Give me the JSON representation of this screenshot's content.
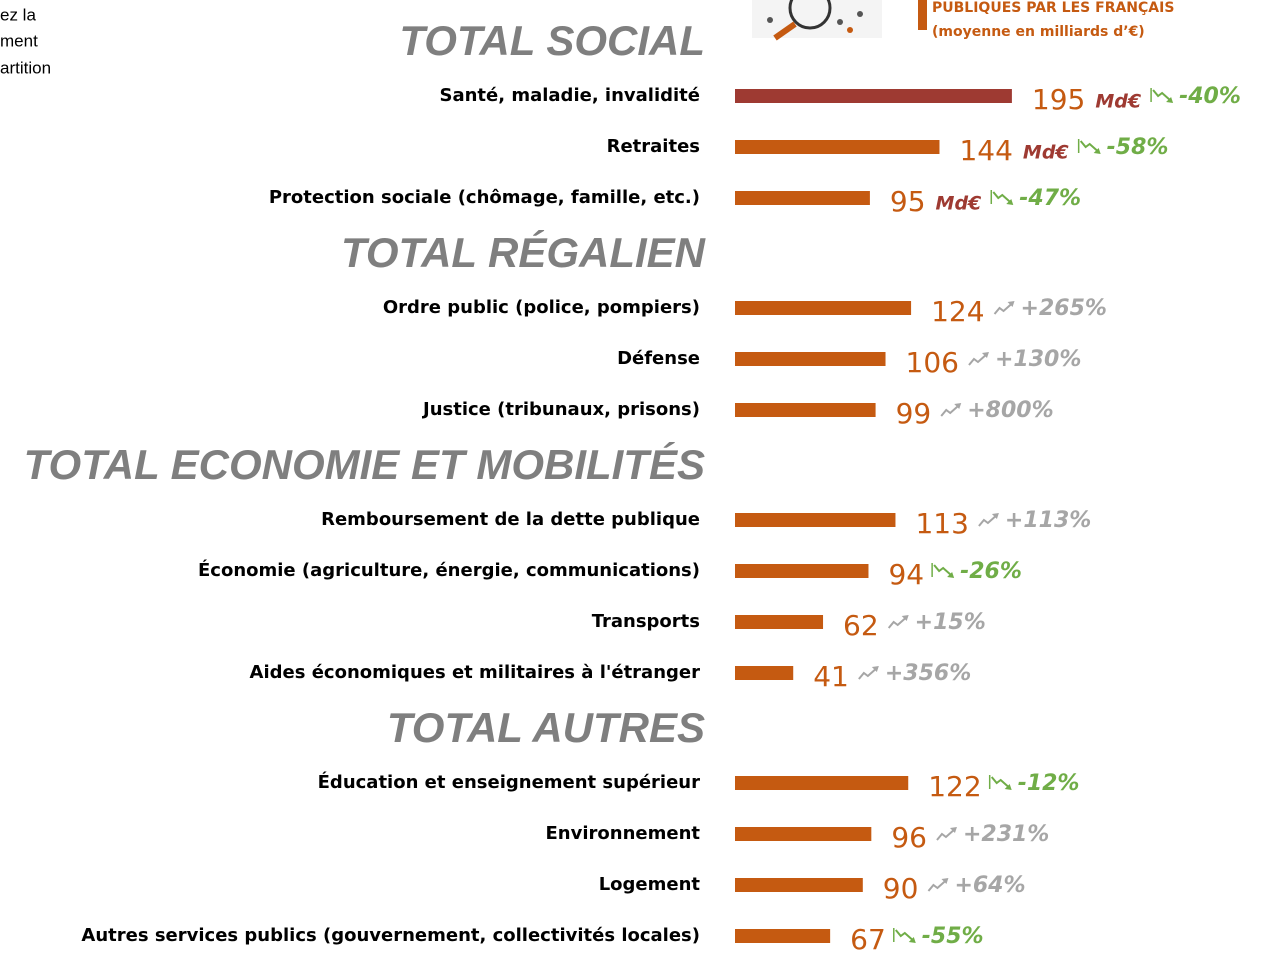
{
  "corner_text": [
    "ez la",
    "ment",
    "artition"
  ],
  "legend": [
    "PUBLIQUES PAR LES FRANÇAIS",
    "(moyenne en milliards d’€)"
  ],
  "chart_data": {
    "type": "bar",
    "color": "#c55a11",
    "highlight_color": "#9e3a32",
    "groups": [
      {
        "title": "TOTAL SOCIAL",
        "unit": "Md€",
        "categories": [
          "Santé, maladie, invalidité",
          "Retraites",
          "Protection sociale (chômage, famille, etc.)"
        ],
        "values": [
          195,
          144,
          95
        ],
        "changes": [
          "-40%",
          "-58%",
          "-47%"
        ]
      },
      {
        "title": "TOTAL RÉGALIEN",
        "categories": [
          "Ordre public (police, pompiers)",
          "Défense",
          "Justice (tribunaux, prisons)"
        ],
        "values": [
          124,
          106,
          99
        ],
        "changes": [
          "+265%",
          "+130%",
          "+800%"
        ]
      },
      {
        "title": "TOTAL ECONOMIE ET MOBILITÉS",
        "categories": [
          "Remboursement de la dette publique",
          "Économie (agriculture, énergie, communications)",
          "Transports",
          "Aides économiques et militaires à l'étranger"
        ],
        "values": [
          113,
          94,
          62,
          41
        ],
        "changes": [
          "+113%",
          "-26%",
          "+15%",
          "+356%"
        ]
      },
      {
        "title": "TOTAL AUTRES",
        "categories": [
          "Éducation et enseignement supérieur",
          "Environnement",
          "Logement",
          "Autres services publics (gouvernement, collectivités locales)"
        ],
        "values": [
          122,
          96,
          90,
          67
        ],
        "changes": [
          "-12%",
          "+231%",
          "+64%",
          "-55%"
        ]
      }
    ]
  }
}
